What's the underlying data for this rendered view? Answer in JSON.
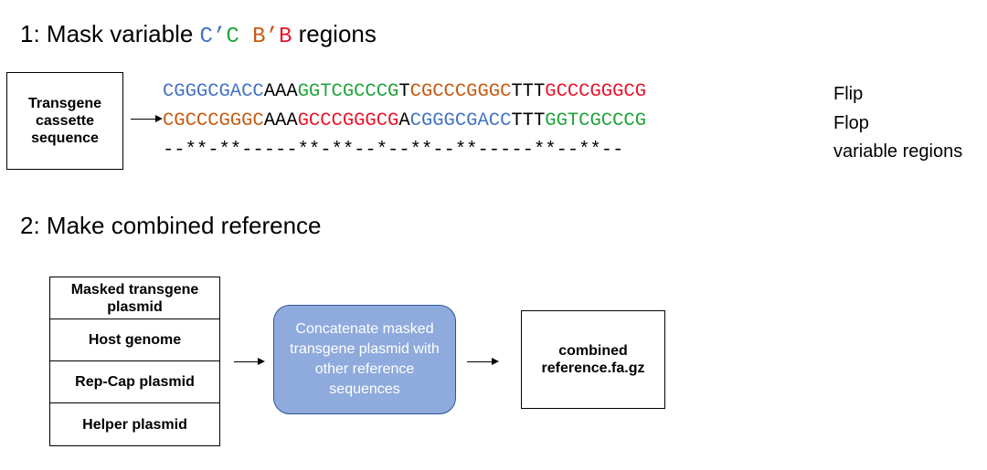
{
  "colors": {
    "blue": "#4472c4",
    "green": "#1fa33a",
    "orange": "#c55a11",
    "red": "#e8132a",
    "black": "#000000",
    "process_fill": "#8faadc",
    "process_border": "#2f5597"
  },
  "step1": {
    "prefix": "1: Mask variable ",
    "regions_text": [
      {
        "text": "C’",
        "color": "blue"
      },
      {
        "text": "C",
        "color": "green"
      },
      {
        "text": " ",
        "color": "black"
      },
      {
        "text": "B’",
        "color": "orange"
      },
      {
        "text": "B",
        "color": "red"
      }
    ],
    "suffix": " regions",
    "source_box": "Transgene cassette sequence",
    "flip": {
      "label": "Flip",
      "segments": [
        {
          "text": "CGGGCGACC",
          "color": "blue"
        },
        {
          "text": "AAA",
          "color": "black"
        },
        {
          "text": "GGTCGCCCG",
          "color": "green"
        },
        {
          "text": "T",
          "color": "black"
        },
        {
          "text": "CGCCCGGGC",
          "color": "orange"
        },
        {
          "text": "TTT",
          "color": "black"
        },
        {
          "text": "GCCCGGGCG",
          "color": "red"
        }
      ]
    },
    "flop": {
      "label": "Flop",
      "segments": [
        {
          "text": "CGCCCGGGC",
          "color": "orange"
        },
        {
          "text": "AAA",
          "color": "black"
        },
        {
          "text": "GCCCGGGCG",
          "color": "red"
        },
        {
          "text": "A",
          "color": "black"
        },
        {
          "text": "CGGGCGACC",
          "color": "blue"
        },
        {
          "text": "TTT",
          "color": "black"
        },
        {
          "text": "GGTCGCCCG",
          "color": "green"
        }
      ]
    },
    "variable": {
      "label": "variable regions",
      "mask": "--**-**-----**-**--*--**--**-----**--**--"
    }
  },
  "step2": {
    "heading": "2: Make combined reference",
    "inputs": [
      "Masked transgene plasmid",
      "Host genome",
      "Rep-Cap plasmid",
      "Helper plasmid"
    ],
    "process": "Concatenate masked transgene plasmid with other reference sequences",
    "output": "combined reference.fa.gz"
  }
}
